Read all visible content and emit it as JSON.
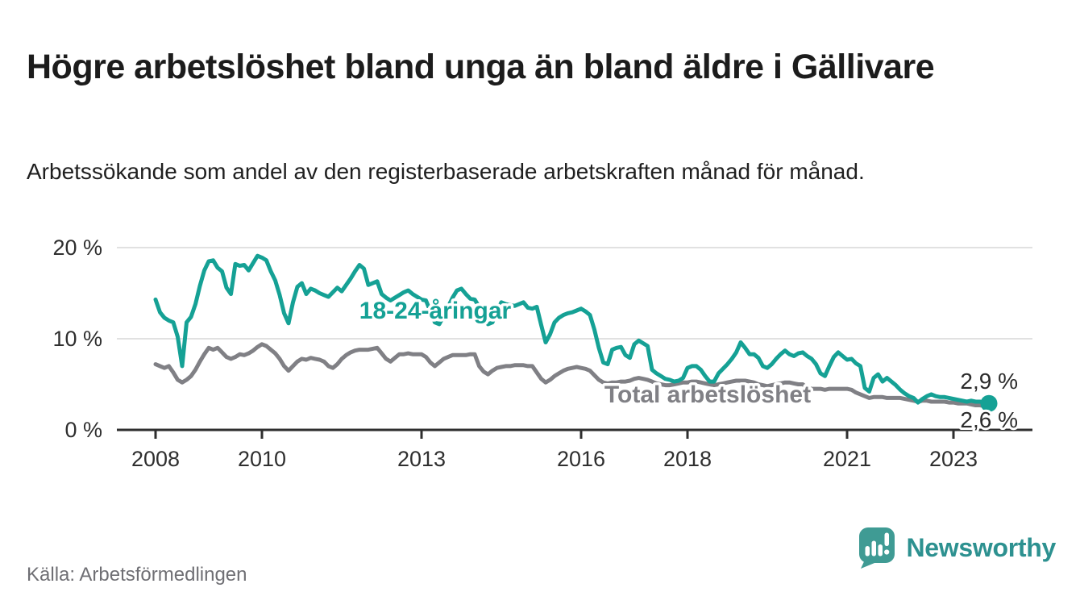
{
  "header": {
    "title": "Högre arbetslöshet bland unga än bland äldre i Gällivare",
    "subtitle": "Arbetssökande som andel av den registerbaserade arbetskraften månad för månad."
  },
  "footer": {
    "source": "Källa: Arbetsförmedlingen",
    "brand_name": "Newsworthy"
  },
  "colors": {
    "accent_teal": "#15a195",
    "series_gray": "#808085",
    "brand_teal": "#2d9190",
    "axis_text": "#2f2f2f",
    "grid": "#e1e1e1",
    "value_label": "#2b2b2b"
  },
  "chart_data": {
    "type": "line",
    "frequency": "monthly",
    "x_start": "2008-01",
    "x_end": "2023-09",
    "xticks": [
      2008,
      2010,
      2013,
      2016,
      2018,
      2021,
      2023
    ],
    "yticks": [
      {
        "label": "20 %",
        "value": 20
      },
      {
        "label": "10 %",
        "value": 10
      },
      {
        "label": "0 %",
        "value": 0
      }
    ],
    "ylim": [
      0,
      21.5
    ],
    "grid": "horizontal",
    "legend_position": "inline-labels",
    "series": [
      {
        "name": "18-24-åringar",
        "color": "#15a195",
        "end_label": "2,9 %",
        "end_value": 2.9,
        "end_dot": true,
        "values": [
          14.3,
          12.9,
          12.3,
          12.0,
          11.8,
          10.2,
          7.0,
          11.8,
          12.4,
          13.8,
          15.8,
          17.5,
          18.5,
          18.6,
          17.8,
          17.4,
          15.6,
          14.9,
          18.2,
          18.0,
          18.1,
          17.5,
          18.3,
          19.1,
          18.9,
          18.6,
          17.4,
          16.4,
          14.8,
          12.8,
          11.7,
          14.0,
          15.7,
          16.1,
          14.9,
          15.5,
          15.3,
          15.0,
          14.8,
          14.6,
          15.1,
          15.6,
          15.2,
          15.9,
          16.6,
          17.4,
          18.1,
          17.7,
          15.9,
          16.1,
          16.3,
          14.9,
          14.5,
          14.2,
          14.5,
          14.8,
          15.1,
          15.3,
          14.9,
          14.6,
          14.3,
          14.2,
          13.0,
          11.8,
          11.6,
          12.5,
          13.5,
          14.5,
          15.3,
          15.5,
          14.9,
          14.4,
          14.3,
          13.5,
          12.3,
          11.6,
          11.8,
          13.0,
          14.0,
          13.8,
          13.7,
          13.6,
          13.8,
          14.0,
          13.4,
          13.3,
          13.5,
          11.5,
          9.6,
          10.5,
          11.8,
          12.3,
          12.6,
          12.8,
          12.9,
          13.1,
          13.3,
          13.0,
          12.6,
          11.0,
          9.0,
          7.4,
          7.2,
          8.8,
          9.0,
          9.1,
          8.2,
          7.9,
          9.4,
          9.8,
          9.5,
          9.2,
          6.6,
          6.2,
          5.9,
          5.6,
          5.5,
          5.3,
          5.4,
          5.7,
          6.8,
          7.0,
          7.0,
          6.6,
          5.9,
          5.3,
          5.3,
          6.2,
          6.7,
          7.2,
          7.8,
          8.5,
          9.6,
          9.0,
          8.3,
          8.3,
          7.9,
          7.0,
          6.8,
          7.2,
          7.8,
          8.3,
          8.7,
          8.3,
          8.1,
          8.4,
          8.5,
          8.1,
          7.8,
          7.2,
          6.2,
          5.9,
          7.0,
          8.0,
          8.5,
          8.1,
          7.7,
          7.8,
          7.3,
          7.0,
          4.6,
          4.2,
          5.7,
          6.1,
          5.3,
          5.7,
          5.3,
          4.9,
          4.4,
          4.0,
          3.7,
          3.5,
          3.0,
          3.4,
          3.7,
          3.9,
          3.7,
          3.6,
          3.6,
          3.5,
          3.4,
          3.3,
          3.2,
          3.1,
          3.2,
          3.1,
          3.1,
          3.0,
          2.9
        ]
      },
      {
        "name": "Total arbetslöshet",
        "color": "#808085",
        "end_label": "2,6 %",
        "end_value": 2.6,
        "end_dot": false,
        "values": [
          7.2,
          7.0,
          6.8,
          7.0,
          6.3,
          5.5,
          5.2,
          5.5,
          5.9,
          6.6,
          7.5,
          8.3,
          9.0,
          8.8,
          9.0,
          8.5,
          8.0,
          7.8,
          8.0,
          8.3,
          8.2,
          8.4,
          8.7,
          9.1,
          9.4,
          9.2,
          8.8,
          8.4,
          7.8,
          7.0,
          6.5,
          7.0,
          7.5,
          7.8,
          7.7,
          7.9,
          7.8,
          7.7,
          7.5,
          7.0,
          6.8,
          7.2,
          7.8,
          8.2,
          8.5,
          8.7,
          8.8,
          8.8,
          8.8,
          8.9,
          9.0,
          8.4,
          7.8,
          7.5,
          7.9,
          8.3,
          8.3,
          8.4,
          8.3,
          8.3,
          8.3,
          8.0,
          7.4,
          7.0,
          7.4,
          7.8,
          8.0,
          8.2,
          8.2,
          8.2,
          8.2,
          8.3,
          8.3,
          7.0,
          6.4,
          6.1,
          6.5,
          6.8,
          6.9,
          7.0,
          7.0,
          7.1,
          7.1,
          7.1,
          7.0,
          7.0,
          6.3,
          5.6,
          5.2,
          5.5,
          5.9,
          6.2,
          6.5,
          6.7,
          6.8,
          6.9,
          6.8,
          6.7,
          6.5,
          6.0,
          5.5,
          5.2,
          5.1,
          5.2,
          5.2,
          5.3,
          5.3,
          5.4,
          5.6,
          5.7,
          5.6,
          5.5,
          5.3,
          5.1,
          5.0,
          4.9,
          4.9,
          5.0,
          5.1,
          5.2,
          5.2,
          5.3,
          5.3,
          5.2,
          5.1,
          5.0,
          4.9,
          5.0,
          5.1,
          5.2,
          5.3,
          5.4,
          5.4,
          5.4,
          5.3,
          5.2,
          5.0,
          4.9,
          4.8,
          4.9,
          5.0,
          5.1,
          5.2,
          5.2,
          5.1,
          5.0,
          5.0,
          4.6,
          4.5,
          4.5,
          4.5,
          4.4,
          4.5,
          4.5,
          4.5,
          4.5,
          4.5,
          4.4,
          4.1,
          3.9,
          3.7,
          3.5,
          3.6,
          3.6,
          3.6,
          3.5,
          3.5,
          3.5,
          3.5,
          3.4,
          3.3,
          3.2,
          3.1,
          3.2,
          3.2,
          3.1,
          3.1,
          3.1,
          3.1,
          3.0,
          3.0,
          2.9,
          2.9,
          2.9,
          2.8,
          2.7,
          2.7,
          2.6,
          2.6
        ]
      }
    ]
  }
}
